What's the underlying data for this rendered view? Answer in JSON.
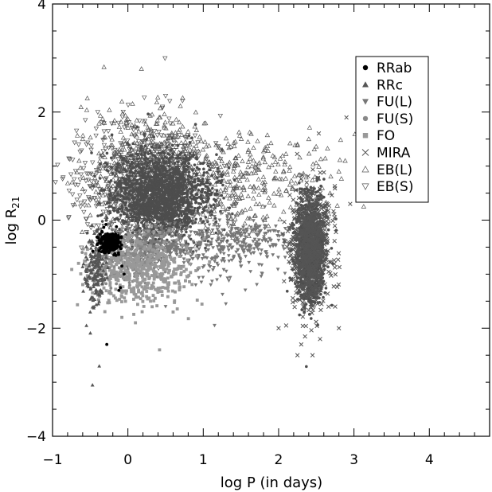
{
  "chart_data": {
    "type": "scatter",
    "xlabel": "log P (in days)",
    "ylabel_main": "log R",
    "ylabel_sub": "21",
    "xlim": [
      -1,
      4.8
    ],
    "ylim": [
      -4,
      4
    ],
    "xticks": [
      -1,
      0,
      1,
      2,
      3,
      4
    ],
    "xtick_labels": [
      "−1",
      "0",
      "1",
      "2",
      "3",
      "4"
    ],
    "yticks": [
      -4,
      -2,
      0,
      2,
      4
    ],
    "ytick_labels": [
      "−4",
      "−2",
      "0",
      "2",
      "4"
    ],
    "legend_position": "top-right",
    "series": [
      {
        "name": "RRab",
        "marker": "circle",
        "color": "#000000",
        "clusters": [
          {
            "x": -0.25,
            "y": -0.42,
            "sx": 0.07,
            "sy": 0.09,
            "n": 260
          }
        ],
        "points": [
          [
            -0.28,
            -2.3
          ],
          [
            -0.1,
            -1.25
          ],
          [
            -0.12,
            -1.3
          ],
          [
            -0.05,
            -1.0
          ],
          [
            -0.08,
            -0.85
          ]
        ]
      },
      {
        "name": "RRc",
        "marker": "triangle-up",
        "color": "#555555",
        "clusters": [
          {
            "x": -0.42,
            "y": -0.9,
            "sx": 0.07,
            "sy": 0.35,
            "n": 170
          }
        ],
        "points": [
          [
            -0.47,
            -3.05
          ],
          [
            -0.38,
            -2.7
          ],
          [
            -0.55,
            -1.95
          ],
          [
            -0.5,
            -1.7
          ],
          [
            -0.45,
            -1.6
          ]
        ]
      },
      {
        "name": "FU(L)",
        "marker": "triangle-down",
        "color": "#777777",
        "clusters": [
          {
            "x": 0.4,
            "y": -0.45,
            "sx": 0.35,
            "sy": 0.18,
            "n": 380
          },
          {
            "x": 1.3,
            "y": -0.5,
            "sx": 0.35,
            "sy": 0.3,
            "n": 230
          },
          {
            "x": 1.7,
            "y": -0.3,
            "sx": 0.3,
            "sy": 0.15,
            "n": 90
          }
        ],
        "points": [
          [
            1.15,
            -1.95
          ],
          [
            1.3,
            -1.55
          ],
          [
            0.5,
            -1.6
          ],
          [
            0.9,
            -1.2
          ]
        ]
      },
      {
        "name": "FU(S)",
        "marker": "circle",
        "color": "#888888",
        "clusters": [
          {
            "x": 0.0,
            "y": -0.75,
            "sx": 0.25,
            "sy": 0.2,
            "n": 220
          }
        ],
        "points": []
      },
      {
        "name": "FO",
        "marker": "square",
        "color": "#999999",
        "clusters": [
          {
            "x": 0.15,
            "y": -0.95,
            "sx": 0.35,
            "sy": 0.3,
            "n": 500
          }
        ],
        "points": [
          [
            0.42,
            -2.4
          ],
          [
            0.1,
            -1.9
          ],
          [
            -0.08,
            -1.8
          ],
          [
            0.6,
            -1.7
          ],
          [
            0.3,
            -1.5
          ]
        ]
      },
      {
        "name": "MIRA",
        "marker": "x",
        "color": "#555555",
        "clusters": [
          {
            "x": 2.42,
            "y": -0.5,
            "sx": 0.13,
            "sy": 0.55,
            "n": 750
          }
        ],
        "points": [
          [
            2.25,
            -2.5
          ],
          [
            2.45,
            -2.5
          ],
          [
            2.3,
            -2.3
          ],
          [
            2.55,
            -2.2
          ],
          [
            2.0,
            -2.0
          ],
          [
            2.1,
            -1.95
          ],
          [
            2.8,
            -2.0
          ],
          [
            2.9,
            1.9
          ],
          [
            2.75,
            -1.6
          ],
          [
            2.95,
            0.3
          ]
        ]
      },
      {
        "name": "EB(L)",
        "marker": "triangle-up-open",
        "color": "#555555",
        "clusters": [
          {
            "x": 0.3,
            "y": 0.9,
            "sx": 0.4,
            "sy": 0.55,
            "n": 600
          },
          {
            "x": 1.5,
            "y": 0.7,
            "sx": 0.6,
            "sy": 0.45,
            "n": 350
          }
        ],
        "points": [
          [
            0.18,
            2.8
          ],
          [
            2.4,
            1.5
          ],
          [
            2.8,
            0.9
          ],
          [
            -0.6,
            1.5
          ]
        ]
      },
      {
        "name": "EB(S)",
        "marker": "triangle-down-open",
        "color": "#555555",
        "clusters": [
          {
            "x": 0.1,
            "y": 0.7,
            "sx": 0.45,
            "sy": 0.6,
            "n": 550
          }
        ],
        "points": [
          [
            -0.55,
            1.4
          ],
          [
            -0.4,
            2.0
          ],
          [
            0.5,
            2.3
          ]
        ]
      },
      {
        "name": "",
        "marker": "dense",
        "color": "#4d4d4d",
        "clusters": [
          {
            "x": 0.45,
            "y": 0.45,
            "sx": 0.32,
            "sy": 0.4,
            "n": 1700
          },
          {
            "x": 2.42,
            "y": -0.55,
            "sx": 0.09,
            "sy": 0.45,
            "n": 1400
          }
        ],
        "points": []
      }
    ]
  }
}
